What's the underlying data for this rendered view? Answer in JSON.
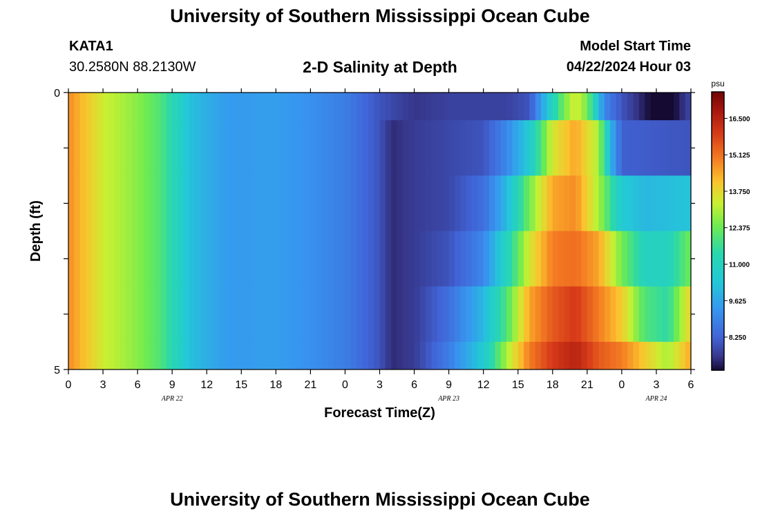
{
  "header": {
    "title": "University of Southern Mississippi Ocean Cube",
    "station_id": "KATA1",
    "station_coords": "30.2580N  88.2130W",
    "plot_title": "2-D Salinity at Depth",
    "model_start_label": "Model Start Time",
    "model_start_value": "04/22/2024 Hour 03"
  },
  "footer": {
    "title": "University of Southern Mississippi Ocean Cube"
  },
  "chart_data": {
    "type": "heatmap",
    "title": "2-D Salinity at Depth",
    "xlabel": "Forecast Time(Z)",
    "ylabel": "Depth (ft)",
    "x_tick_labels": [
      "0",
      "3",
      "6",
      "9",
      "12",
      "15",
      "18",
      "21",
      "0",
      "3",
      "6",
      "9",
      "12",
      "15",
      "18",
      "21",
      "0",
      "3",
      "6"
    ],
    "date_labels": [
      "APR 22",
      "APR 23",
      "APR 24"
    ],
    "y_tick_labels": [
      "0",
      "5"
    ],
    "ylim": [
      0,
      5
    ],
    "x_hours": [
      0,
      54
    ],
    "colorbar": {
      "unit": "psu",
      "range": [
        7.0,
        17.5
      ],
      "tick_labels": [
        "16.500",
        "15.125",
        "13.750",
        "12.375",
        "11.000",
        "9.625",
        "8.250"
      ]
    },
    "grid": false,
    "layers": [
      {
        "depth_top": 0,
        "depth_bottom": 0.5,
        "profile": [
          [
            0,
            14.8
          ],
          [
            3,
            13.4
          ],
          [
            6,
            12.7
          ],
          [
            8,
            12.0
          ],
          [
            9.5,
            11.0
          ],
          [
            10.5,
            10.2
          ],
          [
            12,
            9.8
          ],
          [
            14,
            9.4
          ],
          [
            18,
            9.5
          ],
          [
            21,
            9.2
          ],
          [
            24,
            8.8
          ],
          [
            27,
            8.0
          ],
          [
            30,
            7.5
          ],
          [
            33,
            7.7
          ],
          [
            38,
            7.7
          ],
          [
            40,
            8.0
          ],
          [
            41,
            9.5
          ],
          [
            42,
            11.0
          ],
          [
            43,
            12.5
          ],
          [
            44,
            13.5
          ],
          [
            45,
            12.5
          ],
          [
            46.5,
            9.0
          ],
          [
            48,
            8.0
          ],
          [
            50,
            7.2
          ],
          [
            51,
            6.8
          ],
          [
            52,
            6.6
          ],
          [
            53,
            7.3
          ],
          [
            54,
            7.8
          ]
        ]
      },
      {
        "depth_top": 0.5,
        "depth_bottom": 1.5,
        "profile": [
          [
            0,
            14.8
          ],
          [
            3,
            13.4
          ],
          [
            6,
            12.7
          ],
          [
            8,
            12.0
          ],
          [
            9.5,
            11.0
          ],
          [
            10.5,
            10.2
          ],
          [
            12,
            9.8
          ],
          [
            14,
            9.4
          ],
          [
            18,
            9.5
          ],
          [
            21,
            9.2
          ],
          [
            24,
            8.8
          ],
          [
            27,
            8.0
          ],
          [
            28,
            7.4
          ],
          [
            30,
            7.6
          ],
          [
            33,
            7.8
          ],
          [
            36,
            8.0
          ],
          [
            38,
            9.0
          ],
          [
            40,
            10.5
          ],
          [
            42,
            13.5
          ],
          [
            44,
            14.5
          ],
          [
            46,
            13.0
          ],
          [
            47,
            10.0
          ],
          [
            48,
            8.2
          ],
          [
            54,
            8.0
          ]
        ]
      },
      {
        "depth_top": 1.5,
        "depth_bottom": 2.5,
        "profile": [
          [
            0,
            14.8
          ],
          [
            3,
            13.4
          ],
          [
            6,
            12.7
          ],
          [
            8,
            12.0
          ],
          [
            9.5,
            11.0
          ],
          [
            10.5,
            10.2
          ],
          [
            12,
            9.8
          ],
          [
            14,
            9.4
          ],
          [
            18,
            9.5
          ],
          [
            21,
            9.2
          ],
          [
            24,
            8.8
          ],
          [
            27,
            8.0
          ],
          [
            28,
            7.4
          ],
          [
            30,
            7.6
          ],
          [
            33,
            7.8
          ],
          [
            36,
            8.5
          ],
          [
            38,
            10.0
          ],
          [
            40,
            12.5
          ],
          [
            42,
            14.5
          ],
          [
            44,
            14.8
          ],
          [
            46,
            13.0
          ],
          [
            48,
            10.5
          ],
          [
            50,
            10.0
          ],
          [
            54,
            10.3
          ]
        ]
      },
      {
        "depth_top": 2.5,
        "depth_bottom": 3.5,
        "profile": [
          [
            0,
            14.8
          ],
          [
            3,
            13.4
          ],
          [
            6,
            12.7
          ],
          [
            8,
            12.0
          ],
          [
            9.5,
            11.0
          ],
          [
            10.5,
            10.2
          ],
          [
            12,
            9.8
          ],
          [
            14,
            9.4
          ],
          [
            18,
            9.5
          ],
          [
            21,
            9.2
          ],
          [
            24,
            8.8
          ],
          [
            27,
            8.0
          ],
          [
            28,
            7.4
          ],
          [
            30,
            7.6
          ],
          [
            33,
            8.0
          ],
          [
            36,
            9.0
          ],
          [
            38,
            11.0
          ],
          [
            40,
            13.5
          ],
          [
            42,
            15.0
          ],
          [
            44,
            15.2
          ],
          [
            46,
            14.5
          ],
          [
            48,
            12.5
          ],
          [
            50,
            11.0
          ],
          [
            52,
            11.0
          ],
          [
            54,
            12.5
          ]
        ]
      },
      {
        "depth_top": 3.5,
        "depth_bottom": 4.5,
        "profile": [
          [
            0,
            14.8
          ],
          [
            3,
            13.4
          ],
          [
            6,
            12.7
          ],
          [
            8,
            12.0
          ],
          [
            9.5,
            11.0
          ],
          [
            10.5,
            10.2
          ],
          [
            12,
            9.8
          ],
          [
            14,
            9.4
          ],
          [
            18,
            9.5
          ],
          [
            21,
            9.2
          ],
          [
            24,
            8.8
          ],
          [
            27,
            8.0
          ],
          [
            28,
            7.4
          ],
          [
            30,
            7.6
          ],
          [
            33,
            8.5
          ],
          [
            36,
            10.0
          ],
          [
            38,
            12.0
          ],
          [
            40,
            14.5
          ],
          [
            42,
            15.5
          ],
          [
            44,
            16.0
          ],
          [
            46,
            15.0
          ],
          [
            48,
            14.0
          ],
          [
            50,
            12.0
          ],
          [
            52,
            11.5
          ],
          [
            54,
            14.0
          ]
        ]
      },
      {
        "depth_top": 4.5,
        "depth_bottom": 5,
        "profile": [
          [
            0,
            14.8
          ],
          [
            3,
            13.4
          ],
          [
            6,
            12.7
          ],
          [
            8,
            12.0
          ],
          [
            9.5,
            11.0
          ],
          [
            10.5,
            10.2
          ],
          [
            12,
            9.8
          ],
          [
            14,
            9.4
          ],
          [
            18,
            9.5
          ],
          [
            21,
            9.2
          ],
          [
            24,
            8.8
          ],
          [
            27,
            8.0
          ],
          [
            28,
            7.4
          ],
          [
            30,
            7.6
          ],
          [
            33,
            8.8
          ],
          [
            36,
            10.5
          ],
          [
            38,
            13.0
          ],
          [
            40,
            15.0
          ],
          [
            42,
            16.0
          ],
          [
            44,
            16.5
          ],
          [
            46,
            15.5
          ],
          [
            48,
            15.0
          ],
          [
            50,
            14.0
          ],
          [
            52,
            13.0
          ],
          [
            54,
            14.5
          ]
        ]
      }
    ]
  }
}
